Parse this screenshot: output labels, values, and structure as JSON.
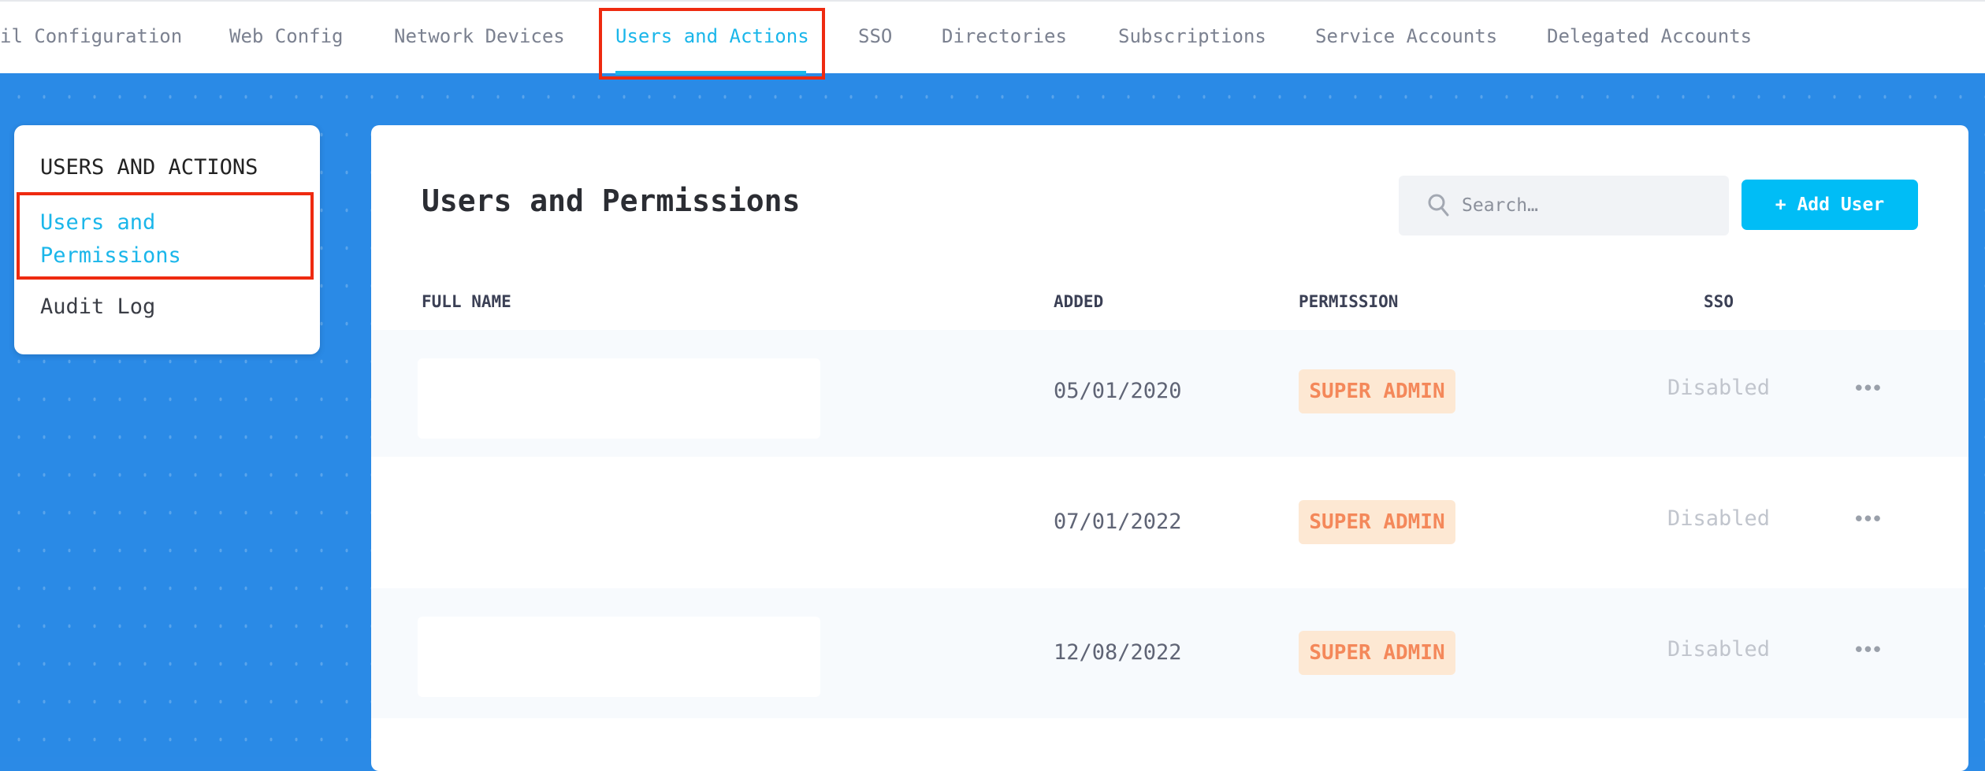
{
  "topnav": {
    "tabs": [
      {
        "label": "il Configuration"
      },
      {
        "label": "Web Config"
      },
      {
        "label": "Network Devices"
      },
      {
        "label": "Users and Actions",
        "active": true
      },
      {
        "label": "SSO"
      },
      {
        "label": "Directories"
      },
      {
        "label": "Subscriptions"
      },
      {
        "label": "Service Accounts"
      },
      {
        "label": "Delegated Accounts"
      }
    ]
  },
  "sidebar": {
    "heading": "USERS AND ACTIONS",
    "items": [
      {
        "label_line1": "Users and",
        "label_line2": "Permissions",
        "active": true
      },
      {
        "label": "Audit Log"
      }
    ]
  },
  "main": {
    "title": "Users and Permissions",
    "search_placeholder": "Search…",
    "add_button": "+ Add User",
    "columns": [
      "FULL NAME",
      "ADDED",
      "PERMISSION",
      "SSO"
    ],
    "rows": [
      {
        "full_name": "",
        "added": "05/01/2020",
        "permission": "SUPER ADMIN",
        "sso": "Disabled"
      },
      {
        "full_name": "",
        "added": "07/01/2022",
        "permission": "SUPER ADMIN",
        "sso": "Disabled"
      },
      {
        "full_name": "",
        "added": "12/08/2022",
        "permission": "SUPER ADMIN",
        "sso": "Disabled"
      }
    ],
    "row_menu": "•••"
  },
  "colors": {
    "accent": "#1ab6ea",
    "button": "#00bdf6",
    "background": "#2a8ae6",
    "badge_bg": "#fde8d3",
    "badge_text": "#f4885a",
    "highlight": "#ee2a10"
  }
}
